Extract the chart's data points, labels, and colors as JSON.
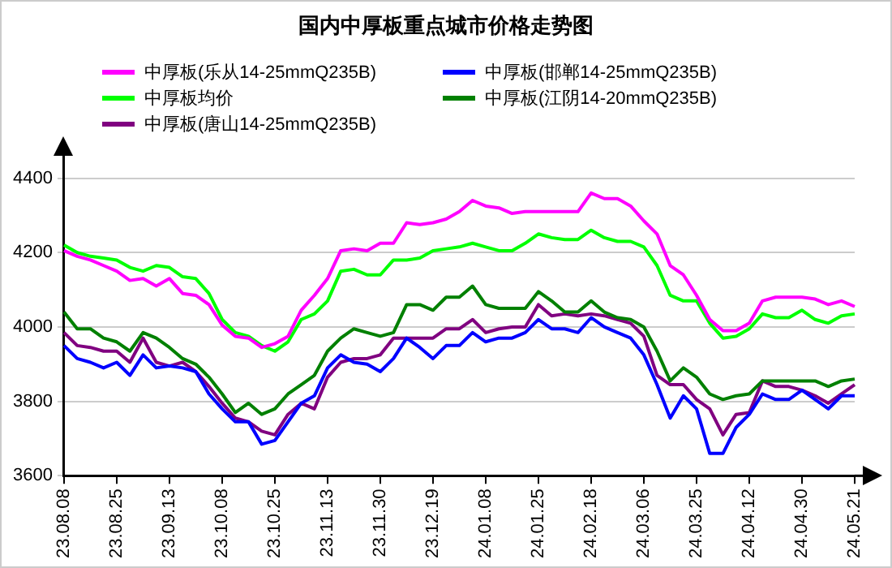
{
  "chart_data": {
    "type": "line",
    "title": "国内中厚板重点城市价格走势图",
    "categories": [
      "23.08.08",
      null,
      null,
      null,
      "23.08.25",
      null,
      null,
      null,
      "23.09.13",
      null,
      null,
      null,
      "23.10.08",
      null,
      null,
      null,
      "23.10.25",
      null,
      null,
      null,
      "23.11.13",
      null,
      null,
      null,
      "23.11.30",
      null,
      null,
      null,
      "23.12.19",
      null,
      null,
      null,
      "24.01.08",
      null,
      null,
      null,
      "24.01.25",
      null,
      null,
      null,
      "24.02.18",
      null,
      null,
      null,
      "24.03.06",
      null,
      null,
      null,
      "24.03.25",
      null,
      null,
      null,
      "24.04.12",
      null,
      null,
      null,
      "24.04.30",
      null,
      null,
      null,
      "24.05.21"
    ],
    "series": [
      {
        "name": "中厚板(乐从14-25mmQ235B)",
        "color": "#ff00ff",
        "values": [
          4205,
          4190,
          4180,
          4165,
          4150,
          4125,
          4130,
          4110,
          4130,
          4090,
          4085,
          4060,
          4005,
          3975,
          3970,
          3945,
          3955,
          3975,
          4045,
          4085,
          4130,
          4205,
          4210,
          4205,
          4225,
          4225,
          4280,
          4275,
          4280,
          4290,
          4310,
          4340,
          4325,
          4320,
          4305,
          4310,
          4310,
          4310,
          4310,
          4310,
          4360,
          4345,
          4345,
          4325,
          4285,
          4250,
          4165,
          4140,
          4085,
          4020,
          3990,
          3990,
          4010,
          4070,
          4080,
          4080,
          4080,
          4075,
          4060,
          4070,
          4055
        ]
      },
      {
        "name": "中厚板(邯郸14-25mmQ235B)",
        "color": "#0000ff",
        "values": [
          3950,
          3915,
          3905,
          3890,
          3905,
          3870,
          3925,
          3890,
          3895,
          3890,
          3880,
          3820,
          3780,
          3745,
          3745,
          3685,
          3695,
          3745,
          3795,
          3815,
          3890,
          3925,
          3905,
          3900,
          3880,
          3915,
          3970,
          3945,
          3915,
          3950,
          3950,
          3985,
          3960,
          3970,
          3970,
          3985,
          4020,
          3995,
          3995,
          3985,
          4025,
          4000,
          3985,
          3970,
          3925,
          3845,
          3755,
          3815,
          3780,
          3660,
          3660,
          3730,
          3765,
          3820,
          3805,
          3805,
          3830,
          3805,
          3780,
          3815,
          3815
        ]
      },
      {
        "name": "中厚板均价",
        "color": "#00ff00",
        "values": [
          4220,
          4200,
          4190,
          4185,
          4180,
          4160,
          4150,
          4165,
          4160,
          4135,
          4130,
          4090,
          4020,
          3985,
          3975,
          3950,
          3935,
          3960,
          4020,
          4035,
          4070,
          4150,
          4155,
          4140,
          4140,
          4180,
          4180,
          4185,
          4205,
          4210,
          4215,
          4225,
          4215,
          4205,
          4205,
          4225,
          4250,
          4240,
          4235,
          4235,
          4260,
          4240,
          4230,
          4230,
          4215,
          4165,
          4085,
          4070,
          4070,
          4010,
          3970,
          3975,
          3995,
          4035,
          4025,
          4025,
          4045,
          4020,
          4010,
          4030,
          4035
        ]
      },
      {
        "name": "中厚板(江阴14-20mmQ235B)",
        "color": "#008000",
        "values": [
          4040,
          3995,
          3995,
          3970,
          3960,
          3935,
          3985,
          3970,
          3945,
          3915,
          3900,
          3865,
          3820,
          3770,
          3795,
          3765,
          3780,
          3820,
          3845,
          3870,
          3935,
          3970,
          3995,
          3985,
          3975,
          3985,
          4060,
          4060,
          4045,
          4080,
          4080,
          4110,
          4060,
          4050,
          4050,
          4050,
          4095,
          4070,
          4040,
          4040,
          4070,
          4040,
          4025,
          4020,
          4000,
          3935,
          3855,
          3890,
          3865,
          3820,
          3805,
          3815,
          3820,
          3855,
          3855,
          3855,
          3855,
          3855,
          3840,
          3855,
          3860
        ]
      },
      {
        "name": "中厚板(唐山14-25mmQ235B)",
        "color": "#800080",
        "values": [
          3985,
          3950,
          3945,
          3935,
          3935,
          3905,
          3970,
          3905,
          3895,
          3905,
          3880,
          3840,
          3795,
          3755,
          3745,
          3720,
          3710,
          3765,
          3795,
          3780,
          3865,
          3905,
          3915,
          3915,
          3925,
          3970,
          3970,
          3970,
          3970,
          3995,
          3995,
          4020,
          3985,
          3995,
          4000,
          4000,
          4060,
          4030,
          4035,
          4030,
          4035,
          4030,
          4020,
          4010,
          3975,
          3870,
          3845,
          3845,
          3805,
          3780,
          3710,
          3765,
          3770,
          3855,
          3840,
          3840,
          3830,
          3815,
          3795,
          3820,
          3845
        ]
      }
    ],
    "ylim": [
      3600,
      4460
    ],
    "yticks": [
      3600,
      3800,
      4000,
      4200,
      4400
    ],
    "grid": "y",
    "legend": "top",
    "marker": "none",
    "line_style": "solid"
  }
}
